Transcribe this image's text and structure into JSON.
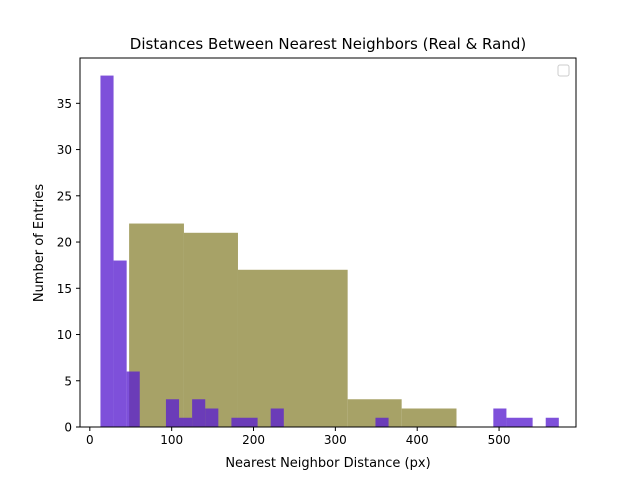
{
  "chart_data": {
    "type": "bar",
    "title": "Distances Between Nearest Neighbors (Real & Rand)",
    "xlabel": "Nearest Neighbor Distance (px)",
    "ylabel": "Number of Entries",
    "xlim": [
      -12,
      594
    ],
    "ylim": [
      0,
      39.9
    ],
    "xticks": [
      0,
      100,
      200,
      300,
      400,
      500
    ],
    "yticks": [
      0,
      5,
      10,
      15,
      20,
      25,
      30,
      35
    ],
    "grid": false,
    "legend": {
      "placement": "upper right",
      "entries": []
    },
    "series": [
      {
        "color": "#a7a267",
        "opacity": 1.0,
        "bins": [
          {
            "x0": 48,
            "x1": 115,
            "count": 22
          },
          {
            "x0": 115,
            "x1": 181,
            "count": 21
          },
          {
            "x0": 181,
            "x1": 315,
            "count": 17
          },
          {
            "x0": 315,
            "x1": 381,
            "count": 3
          },
          {
            "x0": 381,
            "x1": 448,
            "count": 2
          }
        ]
      },
      {
        "color": "#5a1fd0",
        "opacity": 0.78,
        "bins": [
          {
            "x0": 13,
            "x1": 29,
            "count": 38
          },
          {
            "x0": 29,
            "x1": 45,
            "count": 18
          },
          {
            "x0": 45,
            "x1": 61,
            "count": 6
          },
          {
            "x0": 93,
            "x1": 109,
            "count": 3
          },
          {
            "x0": 109,
            "x1": 125,
            "count": 1
          },
          {
            "x0": 125,
            "x1": 141,
            "count": 3
          },
          {
            "x0": 141,
            "x1": 157,
            "count": 2
          },
          {
            "x0": 173,
            "x1": 205,
            "count": 1
          },
          {
            "x0": 221,
            "x1": 237,
            "count": 2
          },
          {
            "x0": 349,
            "x1": 365,
            "count": 1
          },
          {
            "x0": 493,
            "x1": 509,
            "count": 2
          },
          {
            "x0": 509,
            "x1": 541,
            "count": 1
          },
          {
            "x0": 557,
            "x1": 573,
            "count": 1
          }
        ]
      }
    ]
  }
}
